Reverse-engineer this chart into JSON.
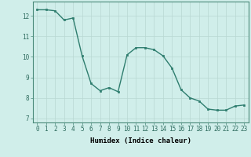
{
  "x": [
    0,
    1,
    2,
    3,
    4,
    5,
    6,
    7,
    8,
    9,
    10,
    11,
    12,
    13,
    14,
    15,
    16,
    17,
    18,
    19,
    20,
    21,
    22,
    23
  ],
  "y": [
    12.3,
    12.3,
    12.25,
    11.8,
    11.9,
    10.05,
    8.7,
    8.35,
    8.5,
    8.3,
    10.1,
    10.45,
    10.45,
    10.35,
    10.05,
    9.45,
    8.4,
    8.0,
    7.85,
    7.45,
    7.4,
    7.4,
    7.6,
    7.65
  ],
  "line_color": "#2e7d6e",
  "marker": "s",
  "marker_size": 2.0,
  "bg_color": "#d0eeea",
  "grid_color": "#b8d8d2",
  "xlabel": "Humidex (Indice chaleur)",
  "xlim": [
    -0.5,
    23.5
  ],
  "ylim": [
    6.8,
    12.7
  ],
  "yticks": [
    7,
    8,
    9,
    10,
    11,
    12
  ],
  "xticks": [
    0,
    1,
    2,
    3,
    4,
    5,
    6,
    7,
    8,
    9,
    10,
    11,
    12,
    13,
    14,
    15,
    16,
    17,
    18,
    19,
    20,
    21,
    22,
    23
  ],
  "tick_fontsize": 5.5,
  "xlabel_fontsize": 6.5,
  "line_width": 1.0
}
